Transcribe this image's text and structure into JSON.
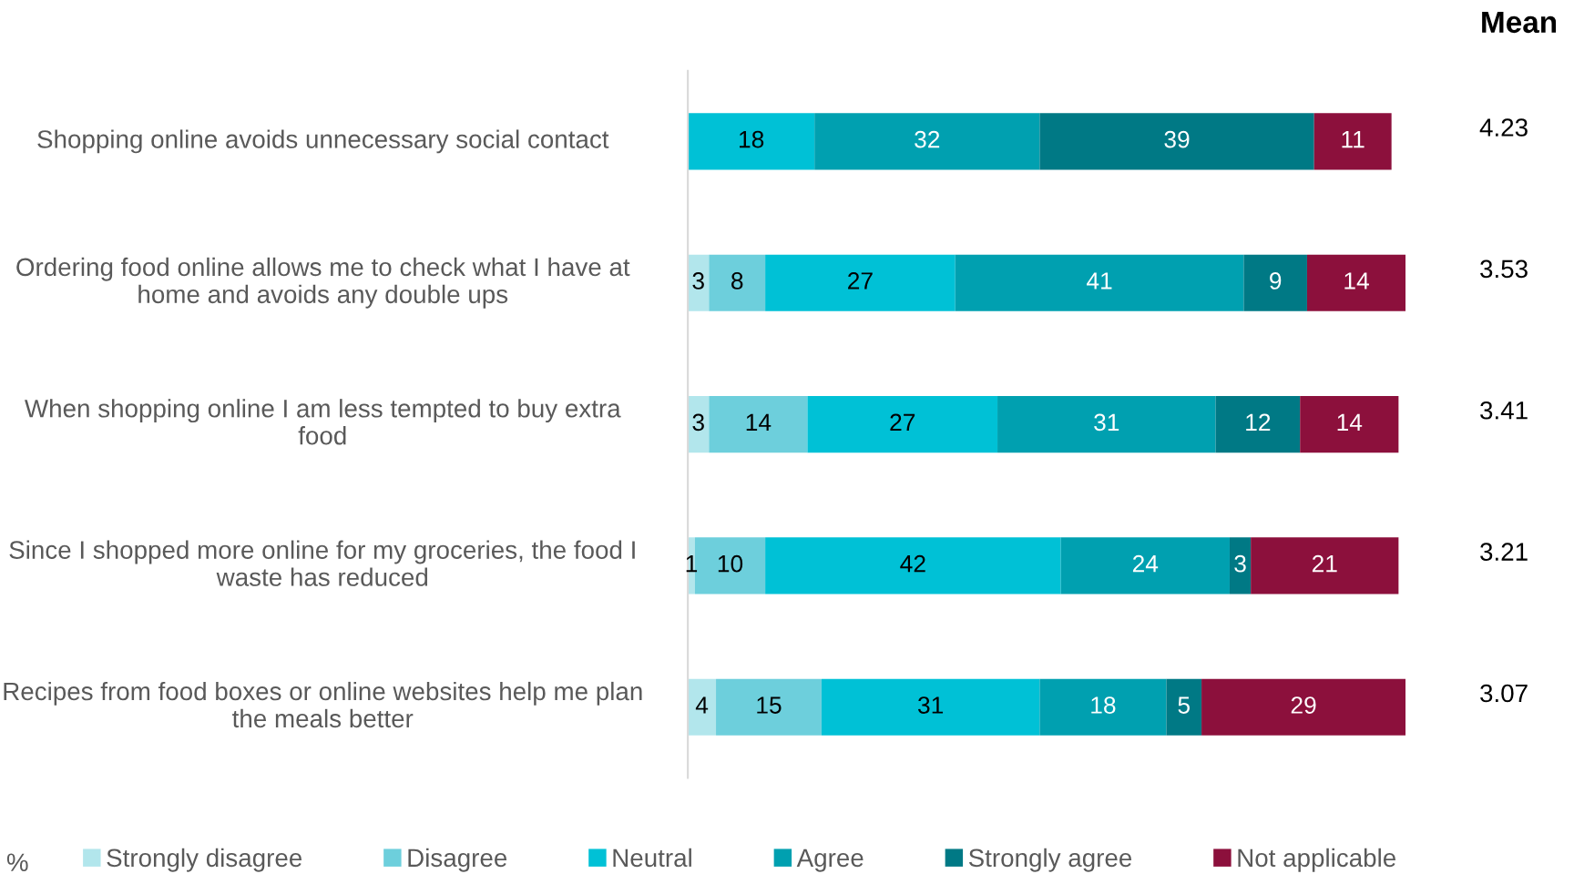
{
  "chart_data": {
    "type": "bar",
    "orientation": "horizontal",
    "stacked": true,
    "data_labels": true,
    "legend": "bottom",
    "legend_title": "%",
    "grid": false,
    "tick_labels": "y",
    "categories": [
      "Shopping online avoids unnecessary social contact",
      "Ordering food online allows me to check what I have at home and avoids any double ups",
      "When shopping online I am less tempted to buy extra food",
      "Since I shopped more online for my groceries, the food I waste has reduced",
      "Recipes from food boxes or online websites help me plan the meals better"
    ],
    "series": [
      {
        "name": "Strongly disagree",
        "color": "#b2e6ec",
        "values": [
          null,
          3,
          3,
          1,
          4
        ]
      },
      {
        "name": "Disagree",
        "color": "#6dcfdc",
        "values": [
          null,
          8,
          14,
          10,
          15
        ]
      },
      {
        "name": "Neutral",
        "color": "#00c1d6",
        "values": [
          18,
          27,
          27,
          42,
          31
        ]
      },
      {
        "name": "Agree",
        "color": "#00a0b0",
        "values": [
          32,
          41,
          31,
          24,
          18
        ]
      },
      {
        "name": "Strongly agree",
        "color": "#007985",
        "values": [
          39,
          9,
          12,
          3,
          5
        ]
      },
      {
        "name": "Not applicable",
        "color": "#8c103c",
        "values": [
          11,
          14,
          14,
          21,
          29
        ]
      }
    ],
    "annotations": [
      "Mean",
      "4.23",
      "3.53",
      "3.41",
      "3.21",
      "3.07"
    ]
  }
}
